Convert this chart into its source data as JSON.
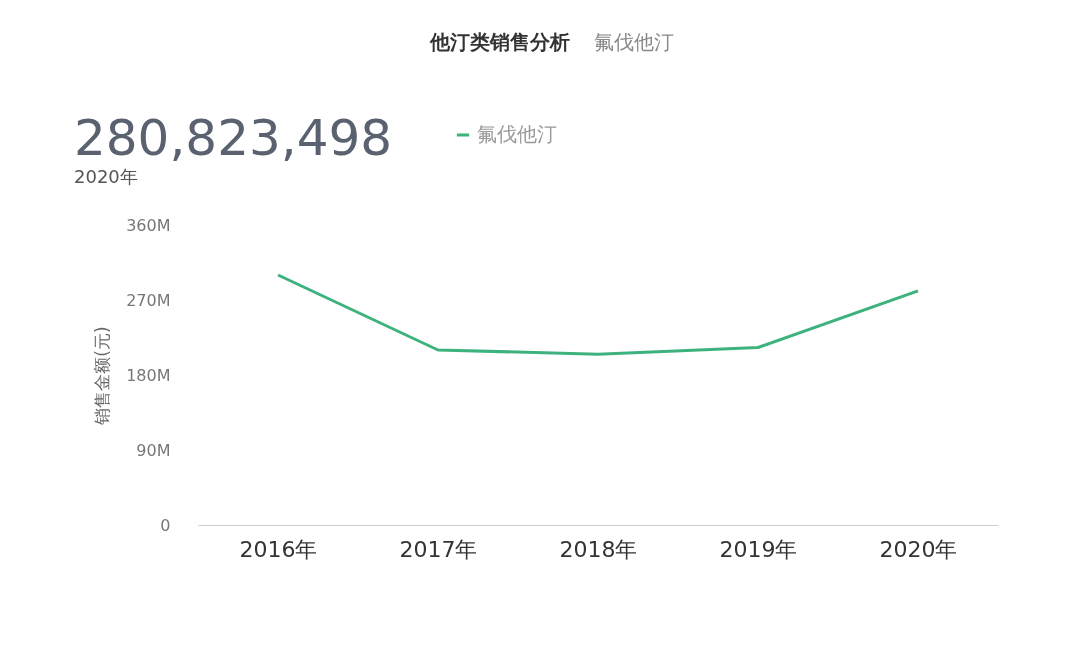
{
  "chart_data": {
    "type": "line",
    "title": "他汀类销售分析",
    "subtitle": "氟伐他汀",
    "ylabel": "销售金额(元)",
    "annotations": [
      "280,823,498",
      "2020年"
    ],
    "categories": [
      "2016年",
      "2017年",
      "2018年",
      "2019年",
      "2020年"
    ],
    "series": [
      {
        "name": "氟伐他汀",
        "color": "#3db27e",
        "values": [
          300000000,
          210000000,
          205000000,
          213000000,
          281000000
        ]
      }
    ],
    "ylim": [
      0,
      360000000
    ],
    "yticks": [
      {
        "value": 0,
        "label": "0"
      },
      {
        "value": 90000000,
        "label": "90M"
      },
      {
        "value": 180000000,
        "label": "180M"
      },
      {
        "value": 270000000,
        "label": "270M"
      },
      {
        "value": 360000000,
        "label": "360M"
      }
    ],
    "grid": false,
    "legend": "top",
    "marker": "none",
    "line_style": "solid"
  }
}
